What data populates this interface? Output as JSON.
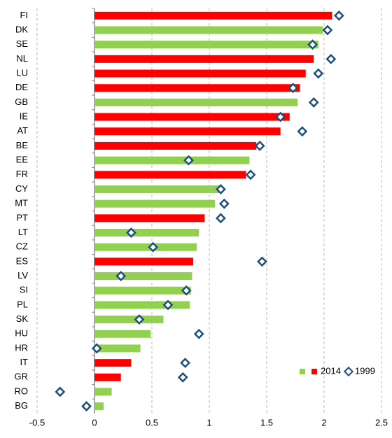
{
  "chart_data": {
    "type": "bar-diamond",
    "categories": [
      "FI",
      "DK",
      "SE",
      "NL",
      "LU",
      "DE",
      "GB",
      "IE",
      "AT",
      "BE",
      "EE",
      "FR",
      "CY",
      "MT",
      "PT",
      "LT",
      "CZ",
      "ES",
      "LV",
      "SI",
      "PL",
      "SK",
      "HU",
      "HR",
      "IT",
      "GR",
      "RO",
      "BG"
    ],
    "series": [
      {
        "name": "2014",
        "legend_colors": [
          "#92d050",
          "#ff0000"
        ],
        "colors": [
          "#ff0000",
          "#92d050",
          "#92d050",
          "#ff0000",
          "#ff0000",
          "#ff0000",
          "#92d050",
          "#ff0000",
          "#ff0000",
          "#ff0000",
          "#92d050",
          "#ff0000",
          "#92d050",
          "#92d050",
          "#ff0000",
          "#92d050",
          "#92d050",
          "#ff0000",
          "#92d050",
          "#92d050",
          "#92d050",
          "#92d050",
          "#92d050",
          "#92d050",
          "#ff0000",
          "#ff0000",
          "#92d050",
          "#92d050"
        ],
        "values": [
          2.07,
          1.99,
          1.95,
          1.91,
          1.84,
          1.79,
          1.77,
          1.7,
          1.62,
          1.41,
          1.35,
          1.32,
          1.09,
          1.05,
          0.96,
          0.91,
          0.89,
          0.86,
          0.85,
          0.84,
          0.83,
          0.6,
          0.49,
          0.4,
          0.32,
          0.23,
          0.15,
          0.08
        ]
      },
      {
        "name": "1999",
        "color": "#1f4e79",
        "values": [
          2.13,
          2.03,
          1.9,
          2.06,
          1.95,
          1.73,
          1.91,
          1.62,
          1.81,
          1.44,
          0.82,
          1.36,
          1.1,
          1.13,
          1.1,
          0.32,
          0.51,
          1.46,
          0.23,
          0.8,
          0.64,
          0.39,
          0.91,
          0.02,
          0.79,
          0.77,
          -0.3,
          -0.07
        ]
      }
    ],
    "xlim": [
      -0.5,
      2.5
    ],
    "xticks": [
      -0.5,
      0,
      0.5,
      1,
      1.5,
      2,
      2.5
    ],
    "grid": true
  }
}
